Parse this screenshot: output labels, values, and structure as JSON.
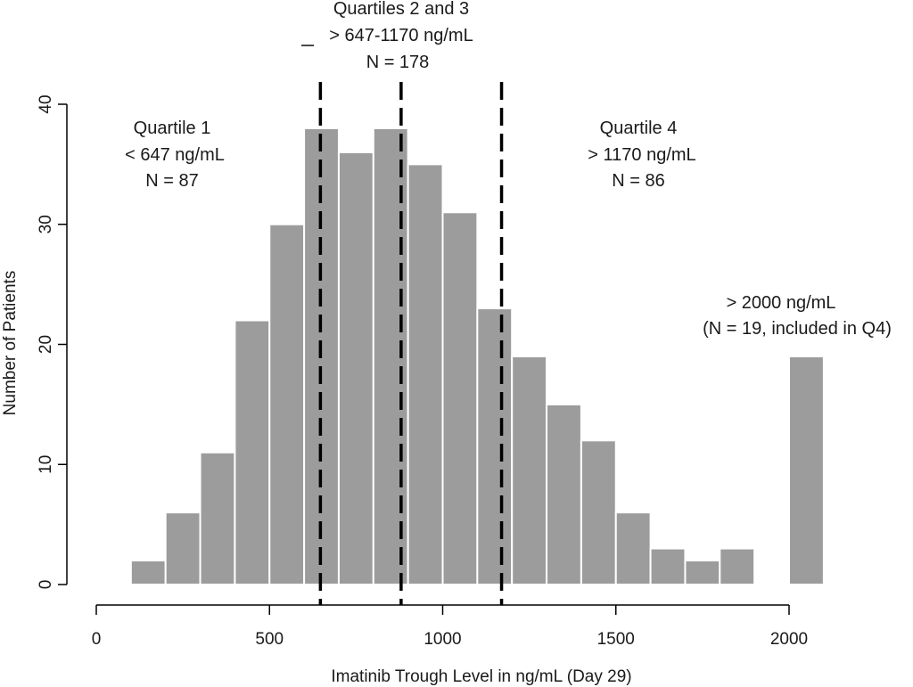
{
  "chart_data": {
    "type": "bar",
    "xlabel": "Imatinib Trough Level in ng/mL (Day 29)",
    "ylabel": "Number of Patients",
    "xlim": [
      0,
      2100
    ],
    "ylim": [
      0,
      40
    ],
    "x_ticks": [
      "0",
      "500",
      "1000",
      "1500",
      "2000"
    ],
    "y_ticks": [
      "0",
      "10",
      "20",
      "30",
      "40"
    ],
    "bin_width": 100,
    "bins": [
      {
        "start": 100,
        "end": 200,
        "count": 2
      },
      {
        "start": 200,
        "end": 300,
        "count": 6
      },
      {
        "start": 300,
        "end": 400,
        "count": 11
      },
      {
        "start": 400,
        "end": 500,
        "count": 22
      },
      {
        "start": 500,
        "end": 600,
        "count": 30
      },
      {
        "start": 600,
        "end": 700,
        "count": 38
      },
      {
        "start": 700,
        "end": 800,
        "count": 36
      },
      {
        "start": 800,
        "end": 900,
        "count": 38
      },
      {
        "start": 900,
        "end": 1000,
        "count": 35
      },
      {
        "start": 1000,
        "end": 1100,
        "count": 31
      },
      {
        "start": 1100,
        "end": 1200,
        "count": 23
      },
      {
        "start": 1200,
        "end": 1300,
        "count": 19
      },
      {
        "start": 1300,
        "end": 1400,
        "count": 15
      },
      {
        "start": 1400,
        "end": 1500,
        "count": 12
      },
      {
        "start": 1500,
        "end": 1600,
        "count": 6
      },
      {
        "start": 1600,
        "end": 1700,
        "count": 3
      },
      {
        "start": 1700,
        "end": 1800,
        "count": 2
      },
      {
        "start": 1800,
        "end": 1900,
        "count": 3
      },
      {
        "start": 2000,
        "end": 2100,
        "count": 19
      }
    ],
    "cutoffs": [
      647,
      880,
      1170
    ],
    "annotations": {
      "q1": [
        "Quartile 1",
        "< 647  ng/mL",
        "N = 87"
      ],
      "q23": [
        "Quartiles 2 and 3",
        "> 647-1170  ng/mL",
        "N = 178"
      ],
      "q4": [
        "Quartile 4",
        "> 1170  ng/mL",
        "N = 86"
      ],
      "over": [
        "> 2000 ng/mL",
        "(N = 19, included in Q4)"
      ]
    },
    "bar_color": "#9c9c9c",
    "grid": false
  }
}
